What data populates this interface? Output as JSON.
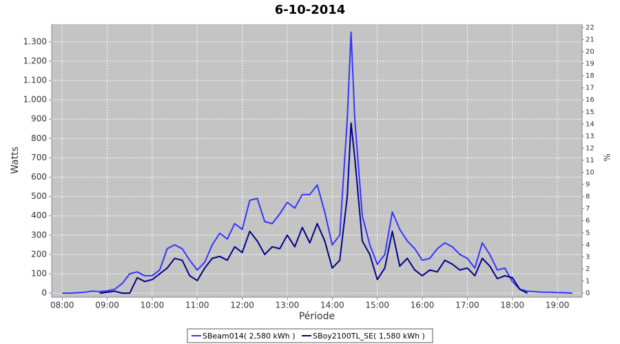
{
  "chart_data": {
    "type": "line",
    "title": "6-10-2014",
    "x_label": "Période",
    "y_label": "Watts",
    "y2_label": "%",
    "x": [
      "08:00",
      "08:10",
      "08:20",
      "08:30",
      "08:40",
      "08:50",
      "09:00",
      "09:10",
      "09:20",
      "09:30",
      "09:40",
      "09:50",
      "10:00",
      "10:10",
      "10:20",
      "10:30",
      "10:40",
      "10:50",
      "11:00",
      "11:10",
      "11:20",
      "11:30",
      "11:40",
      "11:50",
      "12:00",
      "12:10",
      "12:20",
      "12:30",
      "12:40",
      "12:50",
      "13:00",
      "13:10",
      "13:20",
      "13:30",
      "13:40",
      "13:50",
      "14:00",
      "14:10",
      "14:20",
      "14:25",
      "14:30",
      "14:40",
      "14:50",
      "15:00",
      "15:10",
      "15:20",
      "15:30",
      "15:40",
      "15:50",
      "16:00",
      "16:10",
      "16:20",
      "16:30",
      "16:40",
      "16:50",
      "17:00",
      "17:10",
      "17:20",
      "17:30",
      "17:40",
      "17:50",
      "18:00",
      "18:10",
      "18:20",
      "18:30",
      "18:40",
      "18:50",
      "19:00",
      "19:10",
      "19:20"
    ],
    "series": [
      {
        "name": "SBeam014( 2,580 kWh )",
        "color": "#3434ff",
        "values": [
          0,
          0,
          2,
          5,
          10,
          8,
          12,
          20,
          50,
          100,
          110,
          90,
          90,
          120,
          230,
          250,
          230,
          170,
          120,
          160,
          250,
          310,
          280,
          360,
          330,
          480,
          490,
          370,
          360,
          410,
          470,
          440,
          510,
          510,
          560,
          420,
          250,
          300,
          900,
          1350,
          900,
          400,
          250,
          150,
          200,
          420,
          330,
          270,
          230,
          170,
          180,
          230,
          260,
          240,
          200,
          180,
          130,
          260,
          200,
          120,
          130,
          60,
          20,
          10,
          8,
          5,
          5,
          3,
          2,
          0
        ]
      },
      {
        "name": "SBoy2100TL_SE( 1,580 kWh )",
        "color": "#00008b",
        "values": [
          null,
          null,
          null,
          null,
          null,
          0,
          5,
          10,
          0,
          0,
          80,
          60,
          70,
          100,
          130,
          180,
          170,
          90,
          65,
          130,
          180,
          190,
          170,
          240,
          210,
          320,
          270,
          200,
          240,
          230,
          300,
          240,
          340,
          260,
          360,
          270,
          130,
          170,
          500,
          880,
          700,
          270,
          200,
          70,
          130,
          320,
          140,
          180,
          120,
          90,
          120,
          110,
          170,
          150,
          120,
          130,
          90,
          180,
          140,
          75,
          90,
          80,
          20,
          0,
          null,
          null,
          null,
          null,
          null,
          null
        ]
      }
    ],
    "xlim": [
      "07:46",
      "19:33"
    ],
    "xticks": [
      "08:00",
      "09:00",
      "10:00",
      "11:00",
      "12:00",
      "13:00",
      "14:00",
      "15:00",
      "16:00",
      "17:00",
      "18:00",
      "19:00"
    ],
    "ylim": [
      -21,
      1392
    ],
    "yticks": [
      0,
      100,
      200,
      300,
      400,
      500,
      600,
      700,
      800,
      900,
      {
        "value": 1000,
        "label": "1.000"
      },
      {
        "value": 1100,
        "label": "1.100"
      },
      {
        "value": 1200,
        "label": "1.200"
      },
      {
        "value": 1300,
        "label": "1.300"
      }
    ],
    "y2lim": [
      -0.34,
      22.28
    ],
    "y2ticks": [
      0,
      1,
      2,
      3,
      4,
      5,
      6,
      7,
      8,
      9,
      10,
      11,
      12,
      13,
      14,
      15,
      16,
      17,
      18,
      19,
      20,
      21,
      22
    ],
    "grid": true
  }
}
